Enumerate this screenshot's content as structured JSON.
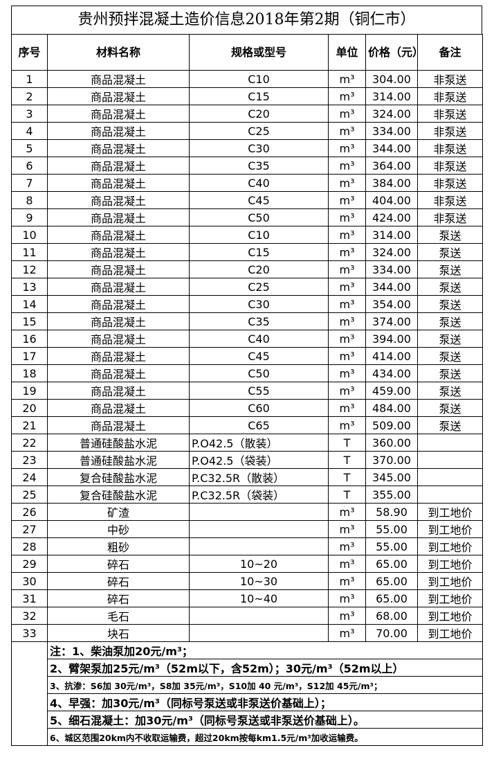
{
  "title": "贵州预拌混凝土造价信息2018年第2期（铜仁市）",
  "table": {
    "headers": [
      "序号",
      "材料名称",
      "规格或型号",
      "单位",
      "价格（元）",
      "备注"
    ],
    "rows": [
      [
        "1",
        "商品混凝土",
        "C10",
        "m³",
        "304.00",
        "非泵送"
      ],
      [
        "2",
        "商品混凝土",
        "C15",
        "m³",
        "314.00",
        "非泵送"
      ],
      [
        "3",
        "商品混凝土",
        "C20",
        "m³",
        "324.00",
        "非泵送"
      ],
      [
        "4",
        "商品混凝土",
        "C25",
        "m³",
        "334.00",
        "非泵送"
      ],
      [
        "5",
        "商品混凝土",
        "C30",
        "m³",
        "344.00",
        "非泵送"
      ],
      [
        "6",
        "商品混凝土",
        "C35",
        "m³",
        "364.00",
        "非泵送"
      ],
      [
        "7",
        "商品混凝土",
        "C40",
        "m³",
        "384.00",
        "非泵送"
      ],
      [
        "8",
        "商品混凝土",
        "C45",
        "m³",
        "404.00",
        "非泵送"
      ],
      [
        "9",
        "商品混凝土",
        "C50",
        "m³",
        "424.00",
        "非泵送"
      ],
      [
        "10",
        "商品混凝土",
        "C10",
        "m³",
        "314.00",
        "泵送"
      ],
      [
        "11",
        "商品混凝土",
        "C15",
        "m³",
        "324.00",
        "泵送"
      ],
      [
        "12",
        "商品混凝土",
        "C20",
        "m³",
        "334.00",
        "泵送"
      ],
      [
        "13",
        "商品混凝土",
        "C25",
        "m³",
        "344.00",
        "泵送"
      ],
      [
        "14",
        "商品混凝土",
        "C30",
        "m³",
        "354.00",
        "泵送"
      ],
      [
        "15",
        "商品混凝土",
        "C35",
        "m³",
        "374.00",
        "泵送"
      ],
      [
        "16",
        "商品混凝土",
        "C40",
        "m³",
        "394.00",
        "泵送"
      ],
      [
        "17",
        "商品混凝土",
        "C45",
        "m³",
        "414.00",
        "泵送"
      ],
      [
        "18",
        "商品混凝土",
        "C50",
        "m³",
        "434.00",
        "泵送"
      ],
      [
        "19",
        "商品混凝土",
        "C55",
        "m³",
        "459.00",
        "泵送"
      ],
      [
        "20",
        "商品混凝土",
        "C60",
        "m³",
        "484.00",
        "泵送"
      ],
      [
        "21",
        "商品混凝土",
        "C65",
        "m³",
        "509.00",
        "泵送"
      ],
      [
        "22",
        "普通硅酸盐水泥",
        "P.O42.5（散装）",
        "T",
        "360.00",
        null
      ],
      [
        "23",
        "普通硅酸盐水泥",
        "P.O42.5（袋装）",
        "T",
        "370.00",
        null
      ],
      [
        "24",
        "复合硅酸盐水泥",
        "P.C32.5R（散装）",
        "T",
        "345.00",
        null
      ],
      [
        "25",
        "复合硅酸盐水泥",
        "P.C32.5R（袋装）",
        "T",
        "355.00",
        null
      ],
      [
        "26",
        "矿渣",
        null,
        "m³",
        "58.90",
        "到工地价"
      ],
      [
        "27",
        "中砂",
        null,
        "m³",
        "55.00",
        "到工地价"
      ],
      [
        "28",
        "粗砂",
        null,
        "m³",
        "55.00",
        "到工地价"
      ],
      [
        "29",
        "碎石",
        "10~20",
        "m³",
        "65.00",
        "到工地价"
      ],
      [
        "30",
        "碎石",
        "10~30",
        "m³",
        "65.00",
        "到工地价"
      ],
      [
        "31",
        "碎石",
        "10~40",
        "m³",
        "65.00",
        "到工地价"
      ],
      [
        "32",
        "毛石",
        null,
        "m³",
        "68.00",
        "到工地价"
      ],
      [
        "33",
        "块石",
        null,
        "m³",
        "70.00",
        "到工地价"
      ]
    ]
  },
  "notes": [
    "注：1、柴油泵加20元/m³；",
    "2、臂架泵加25元/m³（52m以下，含52m）；30元/m³（52m以上）",
    "3、抗渗：S6加 30元/m³，S8加 35元/m³，S10加 40 元/m³，S12加 45元/m³；",
    "4、早强：加30元/m³（同标号泵送或非泵送价基础上）；",
    "5、细石混凝土：加30元/m³（同标号泵送或非泵送价基础上）。",
    "6、城区范围20km内不收取运输费，超过20km按每km1.5元/m³加收运输费。"
  ]
}
